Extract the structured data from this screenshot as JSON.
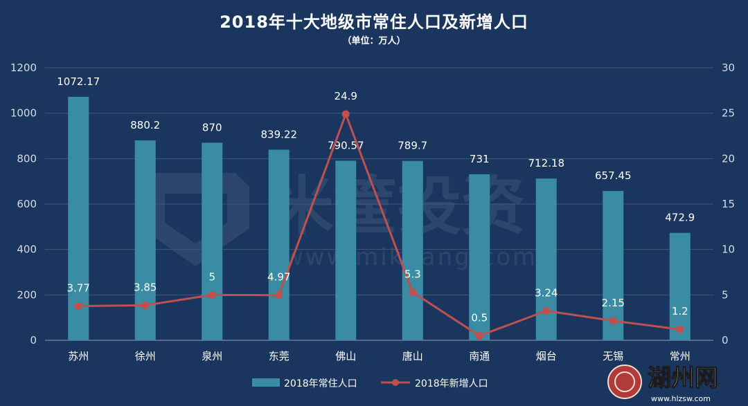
{
  "chart_data": {
    "type": "bar",
    "title": "2018年十大地级市常住人口及新增人口",
    "subtitle": "（单位：万人）",
    "categories": [
      "苏州",
      "徐州",
      "泉州",
      "东莞",
      "佛山",
      "唐山",
      "南通",
      "烟台",
      "无锡",
      "常州"
    ],
    "series": [
      {
        "name": "2018年常住人口",
        "type": "bar",
        "axis": "left",
        "color": "#3a8ca5",
        "values": [
          1072.17,
          880.2,
          870,
          839.22,
          790.57,
          789.7,
          731,
          712.18,
          657.45,
          472.9
        ],
        "labels": [
          "1072.17",
          "880.2",
          "870",
          "839.22",
          "790.57",
          "789.7",
          "731",
          "712.18",
          "657.45",
          "472.9"
        ]
      },
      {
        "name": "2018年新增人口",
        "type": "line",
        "axis": "right",
        "color": "#c0504d",
        "values": [
          3.77,
          3.85,
          5,
          4.97,
          24.9,
          5.3,
          0.5,
          3.24,
          2.15,
          1.2
        ],
        "labels": [
          "3.77",
          "3.85",
          "5",
          "4.97",
          "24.9",
          "5.3",
          "0.5",
          "3.24",
          "2.15",
          "1.2"
        ]
      }
    ],
    "y_left": {
      "min": 0,
      "max": 1200,
      "ticks": [
        "0",
        "200",
        "400",
        "600",
        "800",
        "1000",
        "1200"
      ]
    },
    "y_right": {
      "min": 0,
      "max": 30,
      "ticks": [
        "0",
        "5",
        "10",
        "15",
        "20",
        "25",
        "30"
      ]
    },
    "grid": true,
    "legend": "bottom"
  },
  "watermark": {
    "text": "米筐投资",
    "url": "www.mikuang.com"
  },
  "logo": {
    "text": "湖州网",
    "url": "www.hlzsw.com"
  }
}
